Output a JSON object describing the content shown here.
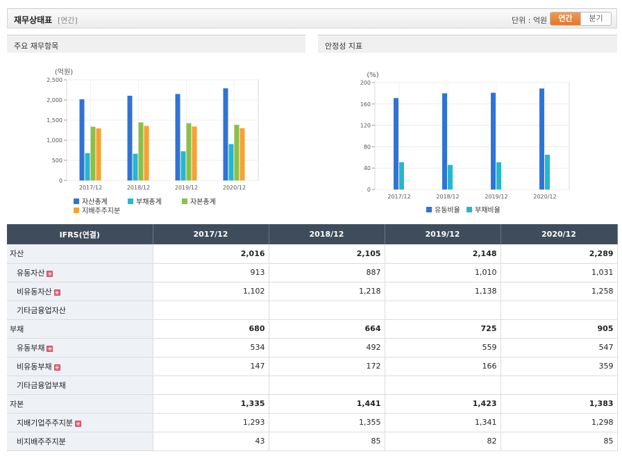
{
  "header": {
    "title": "재무상태표",
    "subtitle": "[연간]",
    "unit_label": "단위 : 억원",
    "tabs": [
      {
        "label": "연간",
        "active": true
      },
      {
        "label": "분기",
        "active": false
      }
    ]
  },
  "panels": {
    "left_title": "주요 재무항목",
    "right_title": "안정성 지표"
  },
  "chart_data": [
    {
      "type": "bar",
      "title": "주요 재무항목",
      "ylabel": "(억원)",
      "categories": [
        "2017/12",
        "2018/12",
        "2019/12",
        "2020/12"
      ],
      "ylim": [
        0,
        2500
      ],
      "yticks": [
        0,
        500,
        1000,
        1500,
        2000,
        2500
      ],
      "ytick_labels": [
        "0",
        "500",
        "1,000",
        "1,500",
        "2,000",
        "2,500"
      ],
      "series": [
        {
          "name": "자산총계",
          "color": "#2e74d6",
          "values": [
            2016,
            2105,
            2148,
            2289
          ]
        },
        {
          "name": "부채총계",
          "color": "#25b8cc",
          "values": [
            680,
            664,
            725,
            905
          ]
        },
        {
          "name": "자본총계",
          "color": "#8cbf4a",
          "values": [
            1335,
            1441,
            1423,
            1383
          ]
        },
        {
          "name": "지배주주지분",
          "color": "#f7a133",
          "values": [
            1293,
            1355,
            1341,
            1298
          ]
        }
      ],
      "legend": "bottom"
    },
    {
      "type": "bar",
      "title": "안정성 지표",
      "ylabel": "(%)",
      "categories": [
        "2017/12",
        "2018/12",
        "2019/12",
        "2020/12"
      ],
      "ylim": [
        0,
        200
      ],
      "yticks": [
        0,
        40,
        80,
        120,
        160,
        200
      ],
      "ytick_labels": [
        "0",
        "40",
        "80",
        "120",
        "160",
        "200"
      ],
      "series": [
        {
          "name": "유동비율",
          "color": "#2e74d6",
          "values": [
            171,
            180,
            181,
            189
          ]
        },
        {
          "name": "부채비율",
          "color": "#25b8cc",
          "values": [
            51,
            46,
            51,
            65
          ]
        }
      ],
      "legend": "bottom"
    }
  ],
  "table": {
    "headers": [
      "IFRS(연결)",
      "2017/12",
      "2018/12",
      "2019/12",
      "2020/12"
    ],
    "rows": [
      {
        "label": "자산",
        "level": "major",
        "expand": false,
        "values": [
          "2,016",
          "2,105",
          "2,148",
          "2,289"
        ]
      },
      {
        "label": "유동자산",
        "level": "minor",
        "expand": true,
        "values": [
          "913",
          "887",
          "1,010",
          "1,031"
        ]
      },
      {
        "label": "비유동자산",
        "level": "minor",
        "expand": true,
        "values": [
          "1,102",
          "1,218",
          "1,138",
          "1,258"
        ]
      },
      {
        "label": "기타금융업자산",
        "level": "minor",
        "expand": false,
        "values": [
          "",
          "",
          "",
          ""
        ]
      },
      {
        "label": "부채",
        "level": "major",
        "expand": false,
        "values": [
          "680",
          "664",
          "725",
          "905"
        ]
      },
      {
        "label": "유동부채",
        "level": "minor",
        "expand": true,
        "values": [
          "534",
          "492",
          "559",
          "547"
        ]
      },
      {
        "label": "비유동부채",
        "level": "minor",
        "expand": true,
        "values": [
          "147",
          "172",
          "166",
          "359"
        ]
      },
      {
        "label": "기타금융업부채",
        "level": "minor",
        "expand": false,
        "values": [
          "",
          "",
          "",
          ""
        ]
      },
      {
        "label": "자본",
        "level": "major",
        "expand": false,
        "values": [
          "1,335",
          "1,441",
          "1,423",
          "1,383"
        ]
      },
      {
        "label": "지배기업주주지분",
        "level": "minor",
        "expand": true,
        "values": [
          "1,293",
          "1,355",
          "1,341",
          "1,298"
        ]
      },
      {
        "label": "비지배주주지분",
        "level": "minor",
        "expand": false,
        "values": [
          "43",
          "85",
          "82",
          "85"
        ]
      }
    ]
  }
}
